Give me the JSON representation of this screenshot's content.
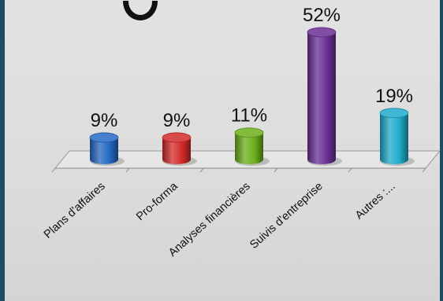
{
  "chart_data": {
    "type": "bar",
    "style": "3d-cylinder",
    "categories": [
      "Plans d'affaires",
      "Pro-forma",
      "Analyses financières",
      "Suivis d'entreprise",
      "Autres :..."
    ],
    "values": [
      9,
      9,
      11,
      52,
      19
    ],
    "value_labels": [
      "9%",
      "9%",
      "11%",
      "52%",
      "19%"
    ],
    "colors": [
      "#2468c4",
      "#d42a2a",
      "#6cae1c",
      "#6a2f94",
      "#1faacc"
    ],
    "ylim": [
      0,
      55
    ],
    "grid": false,
    "legend": "none"
  }
}
